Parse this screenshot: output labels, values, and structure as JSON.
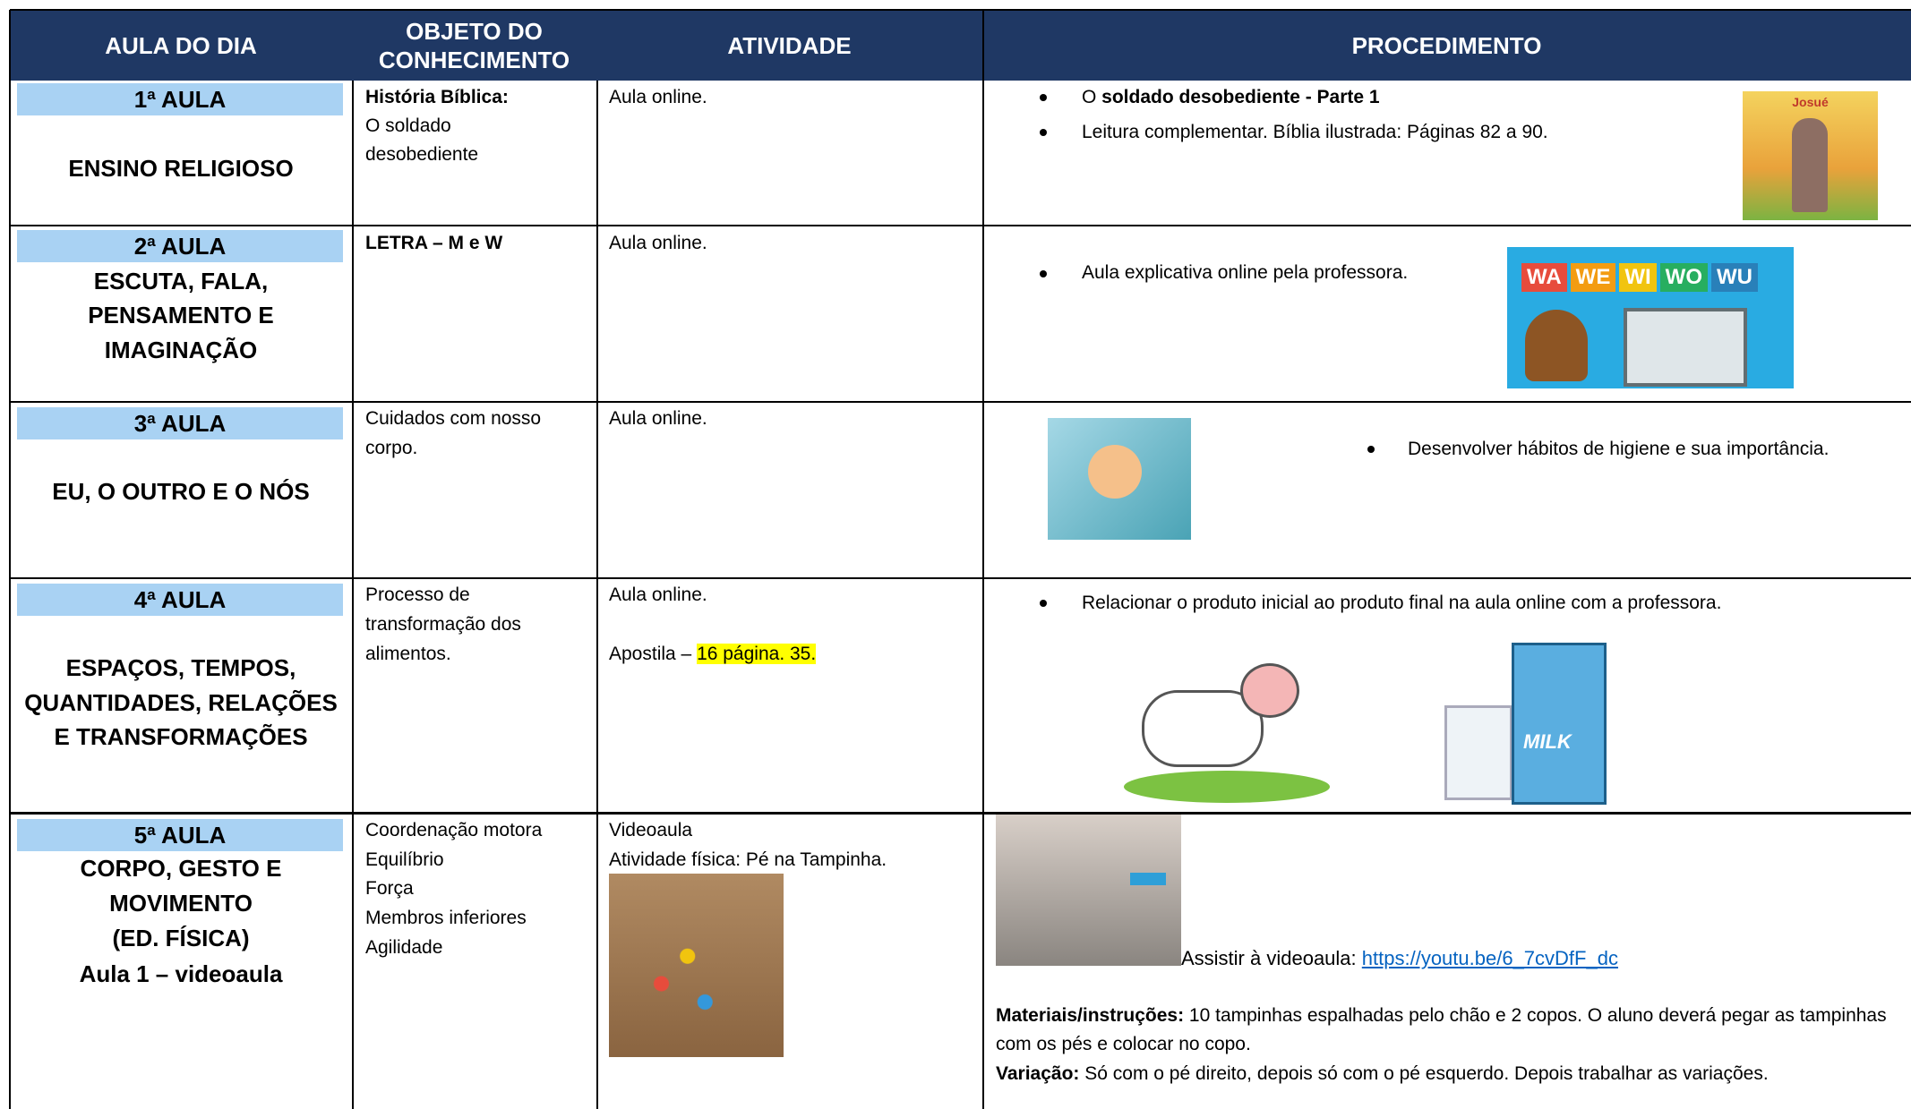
{
  "header": {
    "columns": [
      "AULA DO DIA",
      "OBJETO DO CONHECIMENTO",
      "ATIVIDADE",
      "PROCEDIMENTO"
    ]
  },
  "rows": [
    {
      "aula": "1ª AULA",
      "area": [
        "ENSINO RELIGIOSO"
      ],
      "objeto": {
        "bold": "História Bíblica:",
        "lines": [
          "O soldado",
          "desobediente"
        ]
      },
      "atividade": [
        "Aula online."
      ],
      "procedimento": {
        "items": [
          {
            "text": "O ",
            "bold": "soldado desobediente - Parte 1"
          },
          {
            "text": "Leitura complementar. Bíblia ilustrada: Páginas 82 a 90."
          }
        ],
        "image_text": "Josué"
      }
    },
    {
      "aula": "2ª AULA",
      "area": [
        "ESCUTA, FALA,",
        "PENSAMENTO E",
        "IMAGINAÇÃO"
      ],
      "objeto": {
        "bold": "LETRA – M e W",
        "lines": []
      },
      "atividade": [
        "Aula online."
      ],
      "procedimento": {
        "items": [
          {
            "text": "Aula explicativa online pela professora."
          }
        ],
        "image_text": [
          "WA",
          "WE",
          "WI",
          "WO",
          "WU"
        ]
      }
    },
    {
      "aula": "3ª AULA",
      "area": [
        "EU, O OUTRO E O NÓS"
      ],
      "objeto": {
        "lines": [
          "Cuidados com nosso",
          "corpo."
        ]
      },
      "atividade": [
        "Aula online."
      ],
      "procedimento": {
        "items": [
          {
            "text": "Desenvolver hábitos de higiene e sua importância."
          }
        ]
      }
    },
    {
      "aula": "4ª AULA",
      "area": [
        "ESPAÇOS, TEMPOS,",
        "QUANTIDADES, RELAÇÕES",
        "E TRANSFORMAÇÕES"
      ],
      "objeto": {
        "lines": [
          "Processo de",
          "transformação dos",
          "alimentos."
        ]
      },
      "atividade": [
        "Aula online.",
        {
          "text": "Apostila – ",
          "highlight": "16 página. 35."
        }
      ],
      "procedimento": {
        "items": [
          {
            "text": "Relacionar o produto inicial ao produto final na aula online com a professora."
          }
        ],
        "image_text": "MILK"
      }
    },
    {
      "aula": "5ª AULA",
      "area": [
        "CORPO, GESTO E",
        "MOVIMENTO",
        "(ED. FÍSICA)",
        "Aula 1 – videoaula"
      ],
      "objeto": {
        "lines": [
          "Coordenação motora",
          "Equilíbrio",
          "Força",
          "Membros inferiores",
          "Agilidade"
        ]
      },
      "atividade": [
        "Videoaula",
        "Atividade física: Pé na Tampinha."
      ],
      "procedimento": {
        "watch": "Assistir à videoaula:",
        "link": "https://youtu.be/6_7cvDfF_dc",
        "materials": {
          "label": "Materiais/instruções:",
          "text": "10 tampinhas espalhadas pelo chão e 2 copos. O aluno deverá pegar as tampinhas com os pés e colocar no copo."
        },
        "variation": {
          "label": "Variação:",
          "text": "Só com o pé direito, depois só com o pé esquerdo. Depois trabalhar as variações."
        }
      }
    }
  ]
}
